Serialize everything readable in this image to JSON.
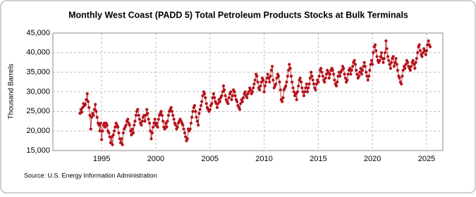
{
  "chart_data": {
    "type": "line",
    "title": "Monthly West Coast (PADD 5) Total Petroleum Products Stocks at Bulk Terminals",
    "y_label": "Thousand Barrels",
    "source": "Source: U.S. Energy Information Administration",
    "color": "#b5121b",
    "grid": true,
    "xlim": [
      1990.5,
      2026.5
    ],
    "xticks": [
      1995,
      2000,
      2005,
      2010,
      2015,
      2020,
      2025
    ],
    "ylim": [
      15000,
      45000
    ],
    "yticks": [
      {
        "value": 15000,
        "label": "15,000"
      },
      {
        "value": 20000,
        "label": "20,000"
      },
      {
        "value": 25000,
        "label": "25,000"
      },
      {
        "value": 30000,
        "label": "30,000"
      },
      {
        "value": 35000,
        "label": "35,000"
      },
      {
        "value": 40000,
        "label": "40,000"
      },
      {
        "value": 45000,
        "label": "45,000"
      }
    ],
    "x": [
      1993.0,
      1993.08,
      1993.17,
      1993.25,
      1993.33,
      1993.42,
      1993.5,
      1993.58,
      1993.67,
      1993.75,
      1993.83,
      1993.92,
      1994.0,
      1994.08,
      1994.17,
      1994.25,
      1994.33,
      1994.42,
      1994.5,
      1994.58,
      1994.67,
      1994.75,
      1994.83,
      1994.92,
      1995.0,
      1995.08,
      1995.17,
      1995.25,
      1995.33,
      1995.42,
      1995.5,
      1995.58,
      1995.67,
      1995.75,
      1995.83,
      1995.92,
      1996.0,
      1996.08,
      1996.17,
      1996.25,
      1996.33,
      1996.42,
      1996.5,
      1996.58,
      1996.67,
      1996.75,
      1996.83,
      1996.92,
      1997.0,
      1997.08,
      1997.17,
      1997.25,
      1997.33,
      1997.42,
      1997.5,
      1997.58,
      1997.67,
      1997.75,
      1997.83,
      1997.92,
      1998.0,
      1998.08,
      1998.17,
      1998.25,
      1998.33,
      1998.42,
      1998.5,
      1998.58,
      1998.67,
      1998.75,
      1998.83,
      1998.92,
      1999.0,
      1999.08,
      1999.17,
      1999.25,
      1999.33,
      1999.42,
      1999.5,
      1999.58,
      1999.67,
      1999.75,
      1999.83,
      1999.92,
      2000.0,
      2000.08,
      2000.17,
      2000.25,
      2000.33,
      2000.42,
      2000.5,
      2000.58,
      2000.67,
      2000.75,
      2000.83,
      2000.92,
      2001.0,
      2001.08,
      2001.17,
      2001.25,
      2001.33,
      2001.42,
      2001.5,
      2001.58,
      2001.67,
      2001.75,
      2001.83,
      2001.92,
      2002.0,
      2002.08,
      2002.17,
      2002.25,
      2002.33,
      2002.42,
      2002.5,
      2002.58,
      2002.67,
      2002.75,
      2002.83,
      2002.92,
      2003.0,
      2003.08,
      2003.17,
      2003.25,
      2003.33,
      2003.42,
      2003.5,
      2003.58,
      2003.67,
      2003.75,
      2003.83,
      2003.92,
      2004.0,
      2004.08,
      2004.17,
      2004.25,
      2004.33,
      2004.42,
      2004.5,
      2004.58,
      2004.67,
      2004.75,
      2004.83,
      2004.92,
      2005.0,
      2005.08,
      2005.17,
      2005.25,
      2005.33,
      2005.42,
      2005.5,
      2005.58,
      2005.67,
      2005.75,
      2005.83,
      2005.92,
      2006.0,
      2006.08,
      2006.17,
      2006.25,
      2006.33,
      2006.42,
      2006.5,
      2006.58,
      2006.67,
      2006.75,
      2006.83,
      2006.92,
      2007.0,
      2007.08,
      2007.17,
      2007.25,
      2007.33,
      2007.42,
      2007.5,
      2007.58,
      2007.67,
      2007.75,
      2007.83,
      2007.92,
      2008.0,
      2008.08,
      2008.17,
      2008.25,
      2008.33,
      2008.42,
      2008.5,
      2008.58,
      2008.67,
      2008.75,
      2008.83,
      2008.92,
      2009.0,
      2009.08,
      2009.17,
      2009.25,
      2009.33,
      2009.42,
      2009.5,
      2009.58,
      2009.67,
      2009.75,
      2009.83,
      2009.92,
      2010.0,
      2010.08,
      2010.17,
      2010.25,
      2010.33,
      2010.42,
      2010.5,
      2010.58,
      2010.67,
      2010.75,
      2010.83,
      2010.92,
      2011.0,
      2011.08,
      2011.17,
      2011.25,
      2011.33,
      2011.42,
      2011.5,
      2011.58,
      2011.67,
      2011.75,
      2011.83,
      2011.92,
      2012.0,
      2012.08,
      2012.17,
      2012.25,
      2012.33,
      2012.42,
      2012.5,
      2012.58,
      2012.67,
      2012.75,
      2012.83,
      2012.92,
      2013.0,
      2013.08,
      2013.17,
      2013.25,
      2013.33,
      2013.42,
      2013.5,
      2013.58,
      2013.67,
      2013.75,
      2013.83,
      2013.92,
      2014.0,
      2014.08,
      2014.17,
      2014.25,
      2014.33,
      2014.42,
      2014.5,
      2014.58,
      2014.67,
      2014.75,
      2014.83,
      2014.92,
      2015.0,
      2015.08,
      2015.17,
      2015.25,
      2015.33,
      2015.42,
      2015.5,
      2015.58,
      2015.67,
      2015.75,
      2015.83,
      2015.92,
      2016.0,
      2016.08,
      2016.17,
      2016.25,
      2016.33,
      2016.42,
      2016.5,
      2016.58,
      2016.67,
      2016.75,
      2016.83,
      2016.92,
      2017.0,
      2017.08,
      2017.17,
      2017.25,
      2017.33,
      2017.42,
      2017.5,
      2017.58,
      2017.67,
      2017.75,
      2017.83,
      2017.92,
      2018.0,
      2018.08,
      2018.17,
      2018.25,
      2018.33,
      2018.42,
      2018.5,
      2018.58,
      2018.67,
      2018.75,
      2018.83,
      2018.92,
      2019.0,
      2019.08,
      2019.17,
      2019.25,
      2019.33,
      2019.42,
      2019.5,
      2019.58,
      2019.67,
      2019.75,
      2019.83,
      2019.92,
      2020.0,
      2020.08,
      2020.17,
      2020.25,
      2020.33,
      2020.42,
      2020.5,
      2020.58,
      2020.67,
      2020.75,
      2020.83,
      2020.92,
      2021.0,
      2021.08,
      2021.17,
      2021.25,
      2021.33,
      2021.42,
      2021.5,
      2021.58,
      2021.67,
      2021.75,
      2021.83,
      2021.92,
      2022.0,
      2022.08,
      2022.17,
      2022.25,
      2022.33,
      2022.42,
      2022.5,
      2022.58,
      2022.67,
      2022.75,
      2022.83,
      2022.92,
      2023.0,
      2023.08,
      2023.17,
      2023.25,
      2023.33,
      2023.42,
      2023.5,
      2023.58,
      2023.67,
      2023.75,
      2023.83,
      2023.92,
      2024.0,
      2024.08,
      2024.17,
      2024.25,
      2024.33,
      2024.42,
      2024.5,
      2024.58,
      2024.67,
      2024.75,
      2024.83,
      2024.92,
      2025.0,
      2025.08,
      2025.17,
      2025.25,
      2025.33
    ],
    "values": [
      24500,
      25500,
      24800,
      26000,
      27000,
      26500,
      26800,
      28000,
      29500,
      27500,
      26000,
      24000,
      20500,
      23500,
      24500,
      24000,
      25500,
      26800,
      25000,
      23500,
      22000,
      21500,
      20000,
      22000,
      17800,
      20000,
      21500,
      22000,
      21000,
      22000,
      21500,
      20000,
      19500,
      18500,
      17000,
      18500,
      16500,
      19000,
      20000,
      21000,
      22000,
      21500,
      21000,
      19500,
      18000,
      17000,
      18000,
      16500,
      19500,
      20500,
      21000,
      21500,
      22500,
      23000,
      22000,
      21500,
      20000,
      19000,
      20500,
      19500,
      21500,
      22500,
      24000,
      25000,
      25500,
      24000,
      23000,
      22000,
      21500,
      22500,
      23500,
      24000,
      22500,
      24000,
      25500,
      24500,
      23000,
      22000,
      20000,
      18000,
      19500,
      21000,
      22000,
      23000,
      21500,
      22000,
      21000,
      23000,
      24000,
      24500,
      25000,
      24000,
      22500,
      21000,
      20500,
      22000,
      21000,
      22500,
      24000,
      25000,
      25500,
      26000,
      25000,
      24000,
      23000,
      22000,
      21500,
      20500,
      21000,
      22000,
      22500,
      23000,
      22500,
      22000,
      21500,
      20500,
      19500,
      18500,
      17500,
      18000,
      20500,
      20000,
      20500,
      22000,
      23500,
      25000,
      26000,
      26500,
      25000,
      23500,
      22500,
      21500,
      24500,
      25500,
      26500,
      27500,
      29000,
      30000,
      29500,
      28500,
      27000,
      26000,
      25500,
      25000,
      25500,
      26500,
      27000,
      28500,
      29500,
      28500,
      27500,
      27000,
      26000,
      27000,
      28000,
      27500,
      28500,
      29000,
      30000,
      31500,
      30500,
      29000,
      28000,
      27500,
      27000,
      28500,
      29500,
      30000,
      28000,
      29000,
      30500,
      30000,
      29000,
      28000,
      27500,
      26500,
      26000,
      25500,
      27000,
      28000,
      27500,
      28500,
      29500,
      30000,
      29000,
      28500,
      29500,
      30000,
      31000,
      30500,
      29500,
      30000,
      31000,
      32000,
      33000,
      34500,
      34000,
      32500,
      31000,
      30500,
      31500,
      32500,
      33500,
      33000,
      30000,
      31500,
      32500,
      33500,
      34500,
      33500,
      32500,
      34000,
      35500,
      36500,
      33000,
      31000,
      31500,
      32000,
      33500,
      34500,
      34000,
      32500,
      30500,
      28000,
      27500,
      28500,
      30500,
      31000,
      31500,
      32500,
      34000,
      35500,
      37000,
      36000,
      34000,
      32500,
      31000,
      30000,
      29000,
      29500,
      28000,
      30000,
      31500,
      33000,
      33500,
      32500,
      31000,
      30000,
      29000,
      30000,
      31000,
      32000,
      30000,
      31000,
      32000,
      33500,
      35000,
      34000,
      33000,
      32000,
      31000,
      30500,
      32000,
      33000,
      32500,
      34000,
      35500,
      36000,
      35000,
      34000,
      33000,
      32500,
      33500,
      34500,
      35500,
      35000,
      33500,
      34500,
      35500,
      36000,
      35500,
      34500,
      33000,
      32000,
      31500,
      32500,
      34000,
      35000,
      34000,
      35000,
      35500,
      36500,
      36000,
      34500,
      33500,
      32500,
      33000,
      34500,
      35500,
      36000,
      34500,
      35500,
      36500,
      37500,
      38000,
      37000,
      35500,
      34500,
      33500,
      34000,
      35000,
      36000,
      34500,
      35500,
      36500,
      37500,
      36500,
      35000,
      34000,
      33000,
      34000,
      35500,
      37000,
      38000,
      37000,
      40000,
      41500,
      42000,
      40500,
      39000,
      38000,
      37500,
      38000,
      39000,
      40000,
      38500,
      37500,
      38500,
      40000,
      43000,
      41000,
      39000,
      38000,
      37000,
      36000,
      37500,
      38500,
      39000,
      36500,
      37500,
      38500,
      37000,
      35500,
      34000,
      33500,
      32500,
      32000,
      34000,
      35500,
      36500,
      36000,
      37000,
      38000,
      37500,
      36500,
      36000,
      35500,
      36500,
      37500,
      38000,
      37000,
      36000,
      37500,
      38500,
      40000,
      41500,
      42000,
      40500,
      39500,
      39000,
      40000,
      41000,
      40500,
      39500,
      40500,
      42000,
      43000,
      42000,
      41500
    ]
  }
}
